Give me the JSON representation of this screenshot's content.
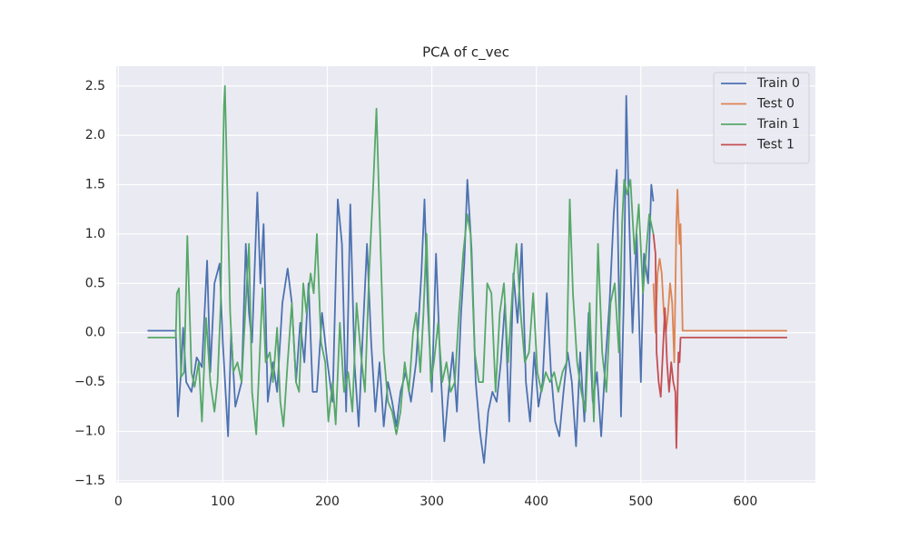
{
  "chart_data": {
    "type": "line",
    "title": "PCA of c_vec",
    "xlim": [
      -2,
      667
    ],
    "ylim": [
      -1.52,
      2.7
    ],
    "xticks": [
      0,
      100,
      200,
      300,
      400,
      500,
      600
    ],
    "yticks": [
      {
        "value": -1.5,
        "label": "−1.5"
      },
      {
        "value": -1.0,
        "label": "−1.0"
      },
      {
        "value": -0.5,
        "label": "−0.5"
      },
      {
        "value": 0,
        "label": "0.0"
      },
      0.5,
      {
        "value": 1.0,
        "label": "1.0"
      },
      1.5,
      {
        "value": 2.0,
        "label": "2.0"
      },
      2.5
    ],
    "grid": true,
    "legend": "upper right",
    "series": [
      {
        "name": "Train 0",
        "color": "#4c72b0",
        "x": [
          28,
          55,
          57,
          60,
          62,
          65,
          70,
          75,
          80,
          83,
          85,
          88,
          92,
          97,
          100,
          105,
          108,
          112,
          118,
          122,
          125,
          128,
          133,
          136,
          139,
          143,
          148,
          152,
          157,
          162,
          166,
          170,
          174,
          178,
          182,
          186,
          190,
          195,
          200,
          205,
          210,
          214,
          218,
          222,
          226,
          230,
          234,
          238,
          242,
          246,
          250,
          254,
          258,
          262,
          266,
          270,
          275,
          280,
          285,
          290,
          293,
          296,
          300,
          304,
          308,
          312,
          316,
          320,
          324,
          328,
          331,
          334,
          338,
          342,
          346,
          350,
          354,
          358,
          362,
          366,
          370,
          374,
          378,
          382,
          386,
          390,
          394,
          398,
          402,
          406,
          410,
          414,
          418,
          422,
          426,
          430,
          434,
          438,
          442,
          446,
          450,
          454,
          458,
          462,
          466,
          470,
          474,
          477,
          481,
          484,
          486,
          489,
          492,
          496,
          500,
          503,
          507,
          510,
          512
        ],
        "values": [
          0.02,
          0.02,
          -0.85,
          -0.4,
          0.05,
          -0.5,
          -0.6,
          -0.25,
          -0.35,
          0.3,
          0.73,
          -0.4,
          0.5,
          0.7,
          -0.1,
          -1.05,
          0,
          -0.75,
          -0.5,
          0.9,
          0.2,
          -0.1,
          1.42,
          0.5,
          1.1,
          -0.7,
          -0.3,
          -0.6,
          0.3,
          0.65,
          0.3,
          -0.5,
          0.1,
          -0.3,
          0.5,
          -0.6,
          -0.6,
          0.2,
          -0.3,
          -0.7,
          1.35,
          0.9,
          -0.8,
          1.3,
          -0.3,
          -0.95,
          0,
          0.9,
          -0.1,
          -0.8,
          -0.3,
          -0.95,
          -0.5,
          -0.7,
          -0.95,
          -0.6,
          -0.4,
          -0.7,
          -0.3,
          0.6,
          1.35,
          0.3,
          -0.6,
          0.8,
          -0.3,
          -1.1,
          -0.6,
          -0.2,
          -0.8,
          0.2,
          0.7,
          1.55,
          0.85,
          -0.5,
          -1.0,
          -1.32,
          -0.8,
          -0.6,
          -0.7,
          -0.3,
          0.3,
          -0.9,
          0.6,
          0.1,
          0.9,
          -0.5,
          -0.9,
          -0.2,
          -0.75,
          -0.5,
          0.4,
          -0.4,
          -0.9,
          -1.05,
          -0.6,
          -0.2,
          -0.5,
          -1.15,
          -0.2,
          -0.9,
          0.2,
          -0.7,
          -0.4,
          -1.05,
          -0.3,
          0.3,
          1.2,
          1.65,
          -0.85,
          0.5,
          2.4,
          1.1,
          0.0,
          1.0,
          -0.5,
          0.8,
          0.5,
          1.5,
          1.33
        ]
      },
      {
        "name": "Test 0",
        "color": "#dd8452",
        "x": [
          512,
          514,
          516,
          518,
          520,
          522,
          524,
          526,
          528,
          530,
          532,
          534,
          535,
          537,
          538,
          540,
          640
        ],
        "values": [
          0.5,
          0.0,
          0.6,
          0.75,
          0.6,
          0.2,
          0.0,
          0.2,
          0.5,
          0.3,
          -0.3,
          1.1,
          1.45,
          0.9,
          1.1,
          0.02,
          0.02
        ]
      },
      {
        "name": "Train 1",
        "color": "#55a868",
        "x": [
          28,
          55,
          56,
          58,
          60,
          63,
          66,
          70,
          73,
          77,
          80,
          84,
          88,
          92,
          95,
          98,
          101,
          102,
          104,
          107,
          110,
          114,
          118,
          122,
          125,
          128,
          132,
          135,
          138,
          141,
          145,
          148,
          152,
          155,
          158,
          162,
          166,
          170,
          173,
          177,
          180,
          184,
          187,
          190,
          194,
          198,
          201,
          205,
          208,
          212,
          216,
          220,
          224,
          228,
          232,
          236,
          240,
          244,
          247,
          250,
          254,
          258,
          262,
          266,
          270,
          274,
          278,
          282,
          285,
          289,
          292,
          295,
          299,
          302,
          306,
          310,
          314,
          318,
          322,
          326,
          330,
          334,
          337,
          341,
          345,
          349,
          353,
          357,
          361,
          365,
          369,
          373,
          377,
          381,
          385,
          389,
          393,
          397,
          401,
          405,
          409,
          413,
          417,
          421,
          425,
          429,
          432,
          435,
          439,
          443,
          447,
          451,
          455,
          459,
          463,
          467,
          471,
          475,
          479,
          482,
          484,
          487,
          490,
          494,
          498,
          502,
          505,
          508,
          512
        ],
        "values": [
          -0.05,
          -0.05,
          0.4,
          0.45,
          -0.45,
          -0.4,
          0.98,
          -0.4,
          -0.55,
          -0.3,
          -0.9,
          0.15,
          -0.5,
          -0.8,
          -0.5,
          0.3,
          2.3,
          2.5,
          1.6,
          0.2,
          -0.4,
          -0.3,
          -0.5,
          0.3,
          0.9,
          -0.6,
          -1.03,
          -0.3,
          0.45,
          -0.3,
          -0.2,
          -0.5,
          0.05,
          -0.7,
          -0.95,
          -0.3,
          0.3,
          -0.5,
          -0.6,
          0.5,
          0.2,
          0.6,
          0.4,
          1.0,
          -0.1,
          -0.3,
          -0.9,
          -0.5,
          -0.93,
          0.1,
          -0.6,
          -0.4,
          -0.8,
          0.3,
          -0.2,
          -0.6,
          0.6,
          1.5,
          2.27,
          1.2,
          -0.2,
          -0.7,
          -0.8,
          -1.03,
          -0.8,
          -0.3,
          -0.6,
          0.0,
          0.2,
          -0.4,
          0.2,
          1.0,
          -0.5,
          -0.3,
          0.1,
          -0.5,
          -0.3,
          -0.6,
          -0.5,
          0.2,
          0.8,
          1.2,
          1.0,
          -0.2,
          -0.5,
          -0.5,
          0.5,
          0.4,
          -0.6,
          0.2,
          0.5,
          -0.3,
          0.4,
          0.9,
          0.2,
          -0.3,
          -0.2,
          0.4,
          -0.4,
          -0.6,
          -0.4,
          -0.5,
          -0.4,
          -0.6,
          -0.4,
          -0.3,
          1.35,
          0.4,
          -0.3,
          -0.6,
          -0.8,
          0.3,
          -0.9,
          0.9,
          -0.2,
          -0.6,
          0.3,
          0.5,
          -0.2,
          1.1,
          1.55,
          1.4,
          1.55,
          0.8,
          1.3,
          0.4,
          0.8,
          1.2,
          1.0
        ]
      },
      {
        "name": "Test 1",
        "color": "#c44e52",
        "x": [
          512,
          514,
          515,
          517,
          519,
          521,
          523,
          525,
          527,
          529,
          531,
          533,
          534,
          536,
          537,
          538,
          640
        ],
        "values": [
          1.0,
          0.8,
          -0.2,
          -0.5,
          -0.65,
          -0.2,
          0.25,
          -0.3,
          -0.6,
          -0.3,
          -0.5,
          -0.6,
          -1.17,
          -0.2,
          -0.3,
          -0.05,
          -0.05
        ]
      }
    ]
  }
}
